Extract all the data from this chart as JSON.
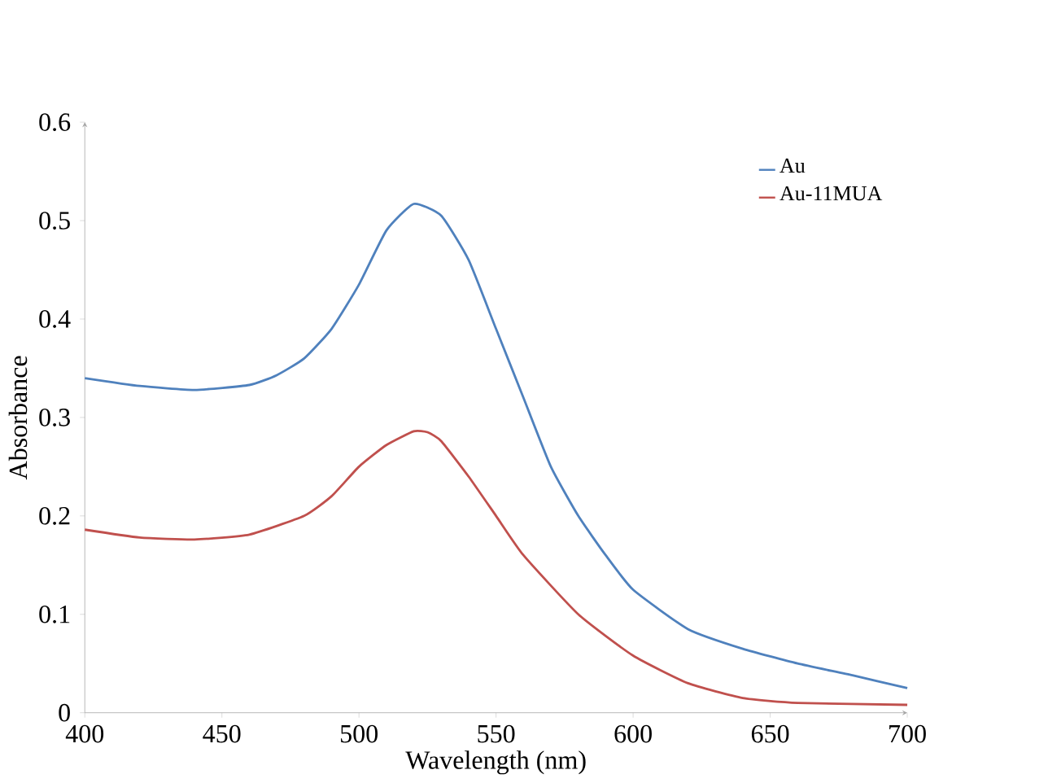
{
  "chart_data": {
    "type": "line",
    "xlabel": "Wavelength (nm)",
    "ylabel": "Absorbance",
    "xlim": [
      400,
      700
    ],
    "xticks": [
      400,
      450,
      500,
      550,
      600,
      650,
      700
    ],
    "ylim": [
      0,
      0.6
    ],
    "yticks": [
      0,
      0.1,
      0.2,
      0.3,
      0.4,
      0.5,
      0.6
    ],
    "grid": false,
    "legend": "top right",
    "marker": "none",
    "line_style": "solid",
    "series": [
      {
        "name": "Au",
        "color": "#4f81bd",
        "x": [
          400,
          420,
          440,
          460,
          470,
          480,
          490,
          500,
          510,
          520,
          530,
          540,
          550,
          560,
          570,
          580,
          590,
          600,
          620,
          640,
          660,
          680,
          700
        ],
        "values": [
          0.34,
          0.332,
          0.328,
          0.333,
          0.343,
          0.36,
          0.39,
          0.435,
          0.49,
          0.517,
          0.505,
          0.46,
          0.39,
          0.32,
          0.25,
          0.2,
          0.16,
          0.125,
          0.085,
          0.065,
          0.05,
          0.038,
          0.025
        ]
      },
      {
        "name": "Au-11MUA",
        "color": "#c0504d",
        "x": [
          400,
          420,
          440,
          460,
          480,
          490,
          500,
          510,
          520,
          525,
          530,
          540,
          550,
          560,
          580,
          600,
          620,
          640,
          660,
          700
        ],
        "values": [
          0.186,
          0.178,
          0.176,
          0.181,
          0.2,
          0.22,
          0.25,
          0.272,
          0.286,
          0.285,
          0.276,
          0.24,
          0.2,
          0.16,
          0.1,
          0.058,
          0.03,
          0.015,
          0.01,
          0.008
        ]
      }
    ]
  }
}
